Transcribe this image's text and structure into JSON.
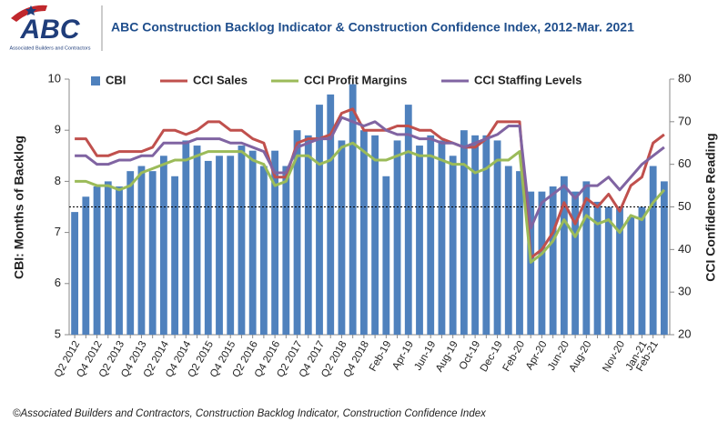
{
  "logo": {
    "mark": "ABC",
    "caption": "Associated Builders and Contractors"
  },
  "footer": "©Associated Builders and Contractors, Construction Backlog Indicator, Construction Confidence Index",
  "chart_data": {
    "type": "combo",
    "title": "ABC Construction Backlog Indicator & Construction Confidence Index, 2012-Mar. 2021",
    "y_label": "CBI: Months of Backlog",
    "y2_label": "CCI Confidence Reading",
    "categories": [
      "Q2 2012",
      null,
      "Q4 2012",
      null,
      "Q2 2013",
      null,
      "Q4 2013",
      null,
      "Q2 2014",
      null,
      "Q4 2014",
      null,
      "Q2 2015",
      null,
      "Q4 2015",
      null,
      "Q2 2016",
      null,
      "Q4 2016",
      null,
      "Q2 2017",
      null,
      "Q4 2017",
      null,
      "Q2 2018",
      null,
      "Q4 2018",
      null,
      "Feb-19",
      null,
      "Apr-19",
      null,
      "Jun-19",
      null,
      "Aug-19",
      null,
      "Oct-19",
      null,
      "Dec-19",
      null,
      "Feb-20",
      null,
      "Apr-20",
      null,
      "Jun-20",
      null,
      "Aug-20",
      null,
      null,
      "Nov-20",
      null,
      "Jan-21",
      "Feb-21",
      null
    ],
    "series": [
      {
        "name": "CBI",
        "type": "bar",
        "axis": "y",
        "color": "#4f81bd",
        "values": [
          7.4,
          7.7,
          7.9,
          8.0,
          7.9,
          8.2,
          8.3,
          8.2,
          8.5,
          8.1,
          8.8,
          8.7,
          8.4,
          8.5,
          8.5,
          8.7,
          8.6,
          8.3,
          8.6,
          8.3,
          9.0,
          8.9,
          9.5,
          9.7,
          8.8,
          9.9,
          9.0,
          8.9,
          8.1,
          8.8,
          9.5,
          8.7,
          8.9,
          8.8,
          8.5,
          9.0,
          8.9,
          8.9,
          8.8,
          8.3,
          8.2,
          7.8,
          7.8,
          7.9,
          8.1,
          7.8,
          8.0,
          7.6,
          7.5,
          7.5,
          7.3,
          7.5,
          8.3,
          8.0
        ]
      },
      {
        "name": "CCI Sales",
        "type": "line",
        "axis": "y2",
        "color": "#c0504d",
        "values": [
          66,
          66,
          62,
          62,
          63,
          63,
          63,
          64,
          68,
          68,
          67,
          68,
          70,
          70,
          68,
          68,
          66,
          65,
          57,
          57,
          65,
          66,
          66,
          67,
          72,
          73,
          68,
          68,
          68,
          69,
          69,
          68,
          68,
          66,
          65,
          64,
          64,
          66,
          70,
          70,
          70,
          38,
          40,
          44,
          51,
          46,
          52,
          50,
          53,
          49,
          55,
          57,
          65,
          67
        ]
      },
      {
        "name": "CCI Profit Margins",
        "type": "line",
        "axis": "y2",
        "color": "#9bbb59",
        "values": [
          56,
          56,
          55,
          55,
          54,
          55,
          58,
          59,
          60,
          61,
          61,
          62,
          63,
          63,
          63,
          63,
          61,
          60,
          55,
          56,
          62,
          62,
          60,
          61,
          64,
          65,
          63,
          61,
          61,
          62,
          63,
          62,
          62,
          61,
          60,
          60,
          58,
          59,
          61,
          61,
          63,
          37,
          39,
          42,
          47,
          43,
          48,
          46,
          47,
          44,
          48,
          47,
          51,
          54
        ]
      },
      {
        "name": "CCI Staffing Levels",
        "type": "line",
        "axis": "y2",
        "color": "#8064a2",
        "values": [
          62,
          62,
          60,
          60,
          61,
          61,
          62,
          62,
          65,
          65,
          65,
          66,
          66,
          66,
          65,
          65,
          64,
          63,
          58,
          58,
          64,
          65,
          66,
          66,
          71,
          70,
          69,
          70,
          68,
          67,
          67,
          66,
          66,
          65,
          65,
          64,
          65,
          66,
          67,
          69,
          69,
          45,
          51,
          53,
          55,
          52,
          55,
          55,
          57,
          54,
          57,
          60,
          62,
          64
        ]
      }
    ],
    "ylim": [
      5,
      10
    ],
    "yticks": [
      5,
      6,
      7,
      8,
      9,
      10
    ],
    "y2lim": [
      20,
      80
    ],
    "y2ticks": [
      20,
      30,
      40,
      50,
      60,
      70,
      80
    ],
    "y2_reference": 50,
    "legend": "top"
  }
}
